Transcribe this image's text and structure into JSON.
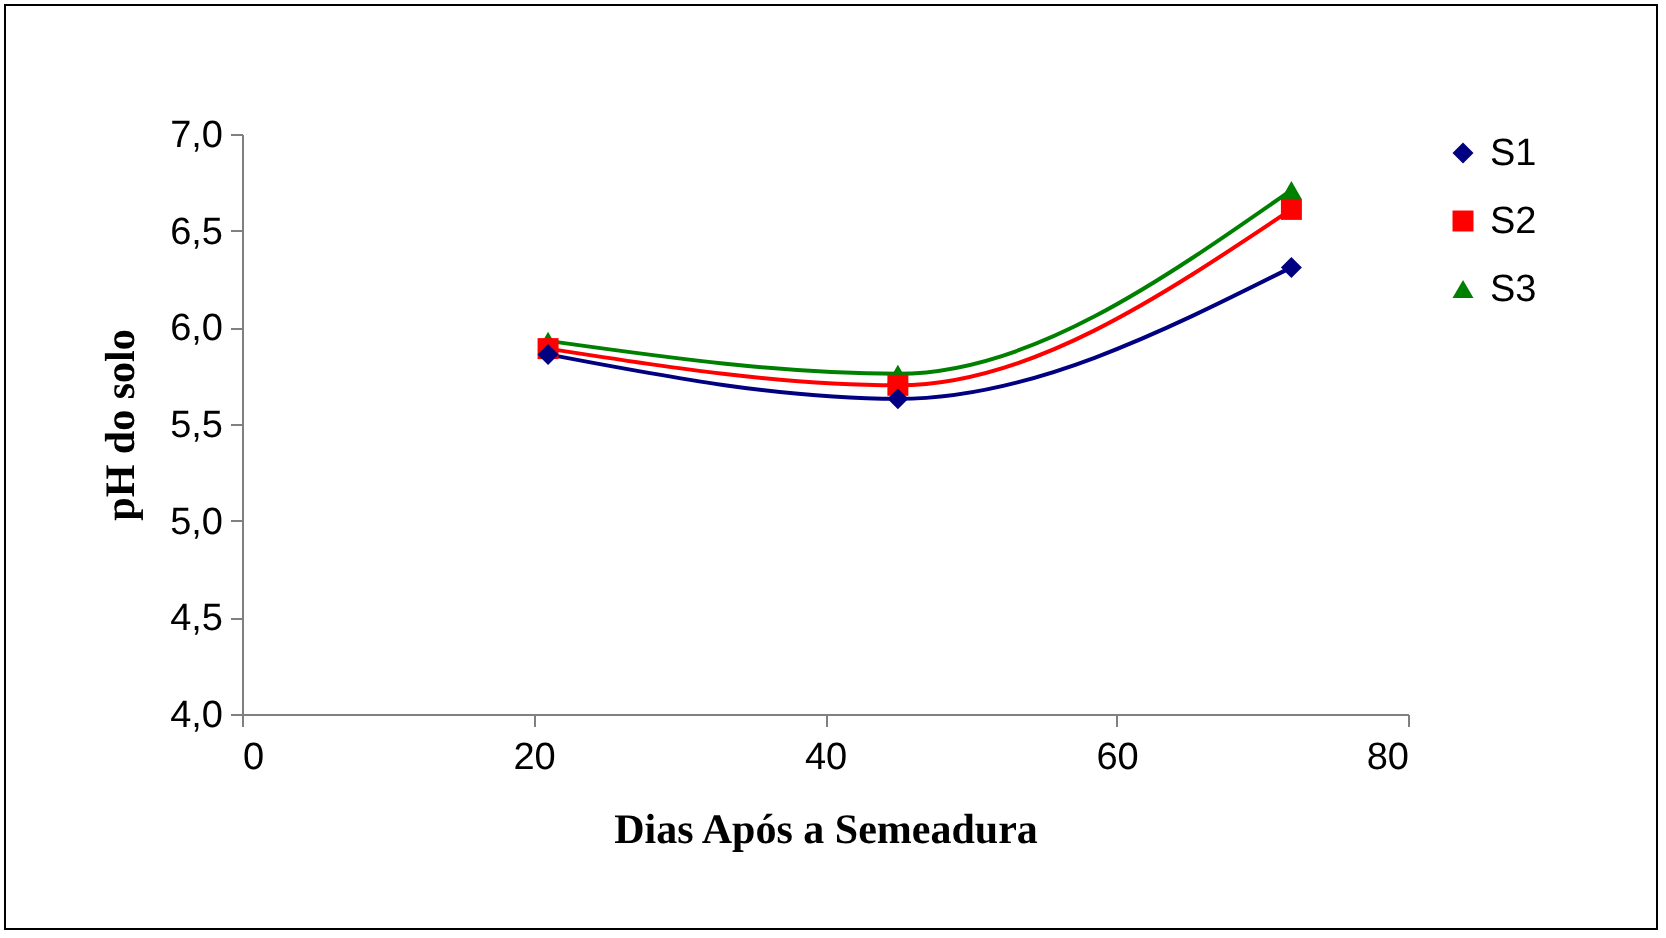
{
  "chart_data": {
    "type": "line",
    "xlabel": "Dias Após a Semeadura",
    "ylabel": "pH do solo",
    "x": [
      21,
      45,
      72
    ],
    "series": [
      {
        "name": "S1",
        "color": "#000080",
        "marker": "diamond",
        "values": [
          5.86,
          5.63,
          6.31
        ]
      },
      {
        "name": "S2",
        "color": "#ff0000",
        "marker": "square",
        "values": [
          5.89,
          5.7,
          6.61
        ]
      },
      {
        "name": "S3",
        "color": "#008000",
        "marker": "triangle",
        "values": [
          5.93,
          5.76,
          6.71
        ]
      }
    ],
    "xlim": [
      0,
      80
    ],
    "xticks": [
      0,
      20,
      40,
      60,
      80
    ],
    "ylim": [
      4,
      7
    ],
    "yticks": [
      {
        "value": 4,
        "label": "4,0"
      },
      {
        "value": 4.5,
        "label": "4,5"
      },
      {
        "value": 5,
        "label": "5,0"
      },
      {
        "value": 5.5,
        "label": "5,5"
      },
      {
        "value": 6,
        "label": "6,0"
      },
      {
        "value": 6.5,
        "label": "6,5"
      },
      {
        "value": 7,
        "label": "7,0"
      }
    ],
    "grid": false,
    "legend": "right",
    "line_style": "solid"
  }
}
